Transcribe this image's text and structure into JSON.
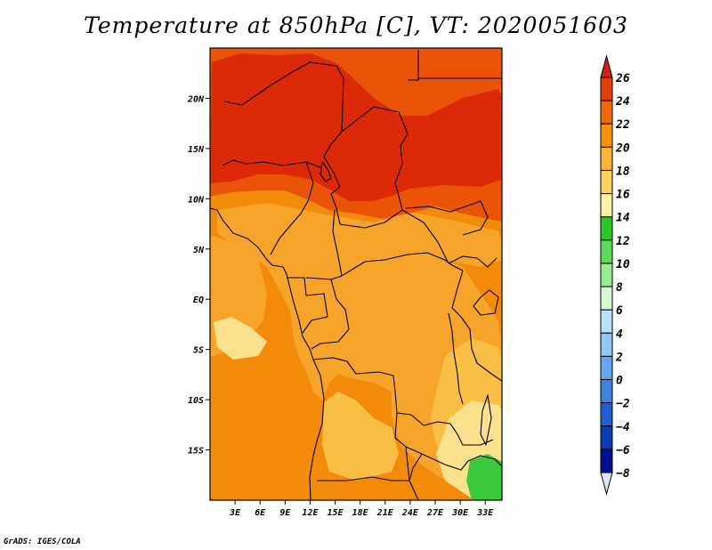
{
  "chart_data": {
    "type": "heatmap",
    "title": "Temperature at 850hPa [C], VT: 2020051603",
    "variable": "Temperature at 850hPa",
    "units": "C",
    "valid_time": "2020051603",
    "x_ticks": [
      {
        "lon": 3,
        "label": "3E"
      },
      {
        "lon": 6,
        "label": "6E"
      },
      {
        "lon": 9,
        "label": "9E"
      },
      {
        "lon": 12,
        "label": "12E"
      },
      {
        "lon": 15,
        "label": "15E"
      },
      {
        "lon": 18,
        "label": "18E"
      },
      {
        "lon": 21,
        "label": "21E"
      },
      {
        "lon": 24,
        "label": "24E"
      },
      {
        "lon": 27,
        "label": "27E"
      },
      {
        "lon": 30,
        "label": "30E"
      },
      {
        "lon": 33,
        "label": "33E"
      }
    ],
    "y_ticks": [
      {
        "lat": 20,
        "label": "20N"
      },
      {
        "lat": 15,
        "label": "15N"
      },
      {
        "lat": 10,
        "label": "10N"
      },
      {
        "lat": 5,
        "label": "5N"
      },
      {
        "lat": 0,
        "label": "EQ"
      },
      {
        "lat": -5,
        "label": "5S"
      },
      {
        "lat": -10,
        "label": "10S"
      },
      {
        "lat": -15,
        "label": "15S"
      }
    ],
    "lon_range": [
      0,
      35
    ],
    "lat_range": [
      -20,
      25
    ],
    "colorbar": {
      "levels": [
        {
          "label": "26",
          "value": 26
        },
        {
          "label": "24",
          "value": 24
        },
        {
          "label": "22",
          "value": 22
        },
        {
          "label": "20",
          "value": 20
        },
        {
          "label": "18",
          "value": 18
        },
        {
          "label": "16",
          "value": 16
        },
        {
          "label": "14",
          "value": 14
        },
        {
          "label": "12",
          "value": 12
        },
        {
          "label": "10",
          "value": 10
        },
        {
          "label": "8",
          "value": 8
        },
        {
          "label": "6",
          "value": 6
        },
        {
          "label": "4",
          "value": 4
        },
        {
          "label": "2",
          "value": 2
        },
        {
          "label": "0",
          "value": 0
        },
        {
          "label": "−2",
          "value": -2
        },
        {
          "label": "−4",
          "value": -4
        },
        {
          "label": "−6",
          "value": -6
        },
        {
          "label": "−8",
          "value": -8
        }
      ],
      "colors_top_to_bottom": [
        "#d2220e",
        "#e2410a",
        "#ed6a09",
        "#f4920b",
        "#fab436",
        "#fbd266",
        "#fef2a4",
        "#2cc52c",
        "#60d860",
        "#98ea93",
        "#d6f8d2",
        "#b8e2f8",
        "#92c6f3",
        "#64a7eb",
        "#3d84e0",
        "#1f60d0",
        "#0b3aaf",
        "#00108e"
      ],
      "under_color": "#dce6f5"
    },
    "field_colors": {
      "c24_26": "#dc2a08",
      "c22_24": "#ea5408",
      "c20_22": "#f28a0a",
      "c18_20": "#f7a52a",
      "c16_18": "#f8bf44",
      "c14_16": "#fbe18e",
      "c12_14": "#3cc83c"
    }
  },
  "credit": "GrADS: IGES/COLA"
}
